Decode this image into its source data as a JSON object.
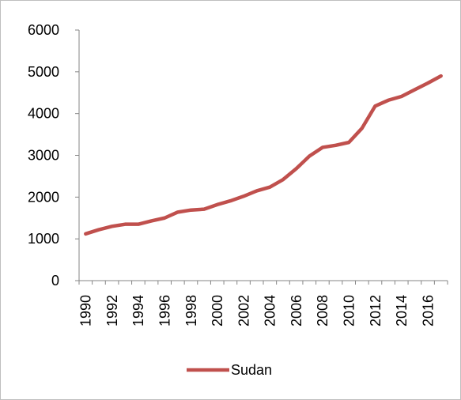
{
  "chart_data": {
    "type": "line",
    "title": "",
    "xlabel": "",
    "ylabel": "",
    "ylim": [
      0,
      6000
    ],
    "yticks": [
      0,
      1000,
      2000,
      3000,
      4000,
      5000,
      6000
    ],
    "x": [
      1990,
      1991,
      1992,
      1993,
      1994,
      1995,
      1996,
      1997,
      1998,
      1999,
      2000,
      2001,
      2002,
      2003,
      2004,
      2005,
      2006,
      2007,
      2008,
      2009,
      2010,
      2011,
      2012,
      2013,
      2014,
      2015,
      2016,
      2017
    ],
    "xtick_labels": [
      "1990",
      "1992",
      "1994",
      "1996",
      "1998",
      "2000",
      "2002",
      "2004",
      "2006",
      "2008",
      "2010",
      "2012",
      "2014",
      "2016"
    ],
    "series": [
      {
        "name": "Sudan",
        "color": "#c0504d",
        "values": [
          1120,
          1220,
          1300,
          1350,
          1350,
          1430,
          1500,
          1640,
          1690,
          1710,
          1820,
          1910,
          2020,
          2150,
          2240,
          2420,
          2680,
          2980,
          3190,
          3240,
          3310,
          3650,
          4180,
          4320,
          4410,
          4570,
          4730,
          4900
        ]
      }
    ],
    "grid": false,
    "legend": "bottom"
  }
}
